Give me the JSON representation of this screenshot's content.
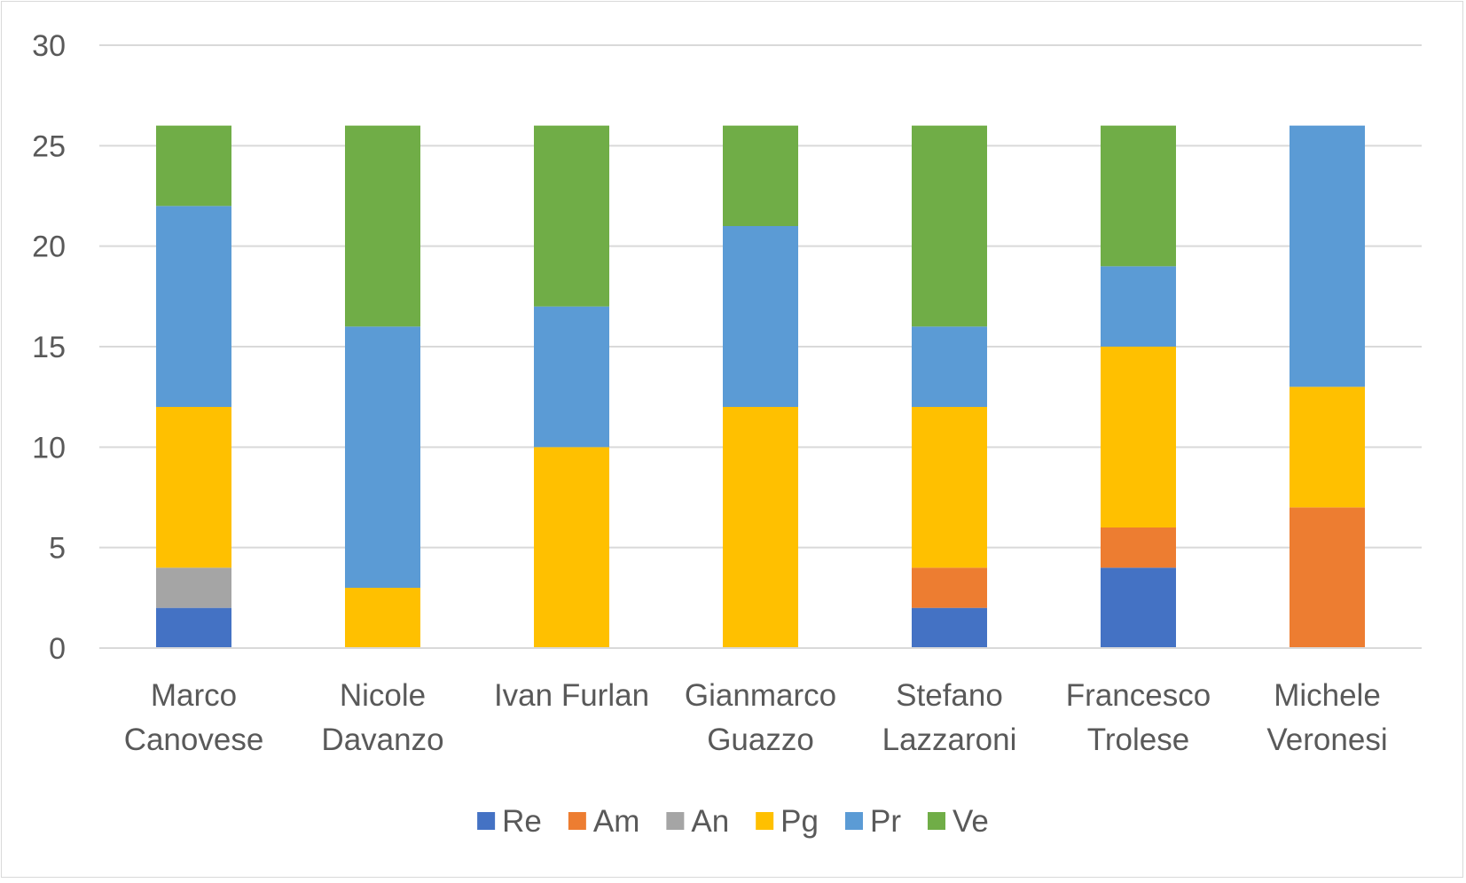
{
  "chart_data": {
    "type": "bar",
    "stacked": true,
    "categories": [
      [
        "Marco",
        "Canovese"
      ],
      [
        "Nicole",
        "Davanzo"
      ],
      [
        "Ivan Furlan"
      ],
      [
        "Gianmarco",
        "Guazzo"
      ],
      [
        "Stefano",
        "Lazzaroni"
      ],
      [
        "Francesco",
        "Trolese"
      ],
      [
        "Michele",
        "Veronesi"
      ]
    ],
    "series": [
      {
        "name": "Re",
        "color": "#4472c4",
        "values": [
          2,
          0,
          0,
          0,
          2,
          4,
          0
        ]
      },
      {
        "name": "Am",
        "color": "#ed7d31",
        "values": [
          0,
          0,
          0,
          0,
          2,
          2,
          7
        ]
      },
      {
        "name": "An",
        "color": "#a5a5a5",
        "values": [
          2,
          0,
          0,
          0,
          0,
          0,
          0
        ]
      },
      {
        "name": "Pg",
        "color": "#ffc000",
        "values": [
          8,
          3,
          10,
          12,
          8,
          9,
          6
        ]
      },
      {
        "name": "Pr",
        "color": "#5b9bd5",
        "values": [
          10,
          13,
          7,
          9,
          4,
          4,
          13
        ]
      },
      {
        "name": "Ve",
        "color": "#70ad47",
        "values": [
          4,
          10,
          9,
          5,
          10,
          7,
          0
        ]
      }
    ],
    "title": "",
    "xlabel": "",
    "ylabel": "",
    "ylim": [
      0,
      30
    ],
    "yticks": [
      "0",
      "5",
      "10",
      "15",
      "20",
      "25",
      "30"
    ],
    "grid": true,
    "legend_position": "bottom"
  }
}
